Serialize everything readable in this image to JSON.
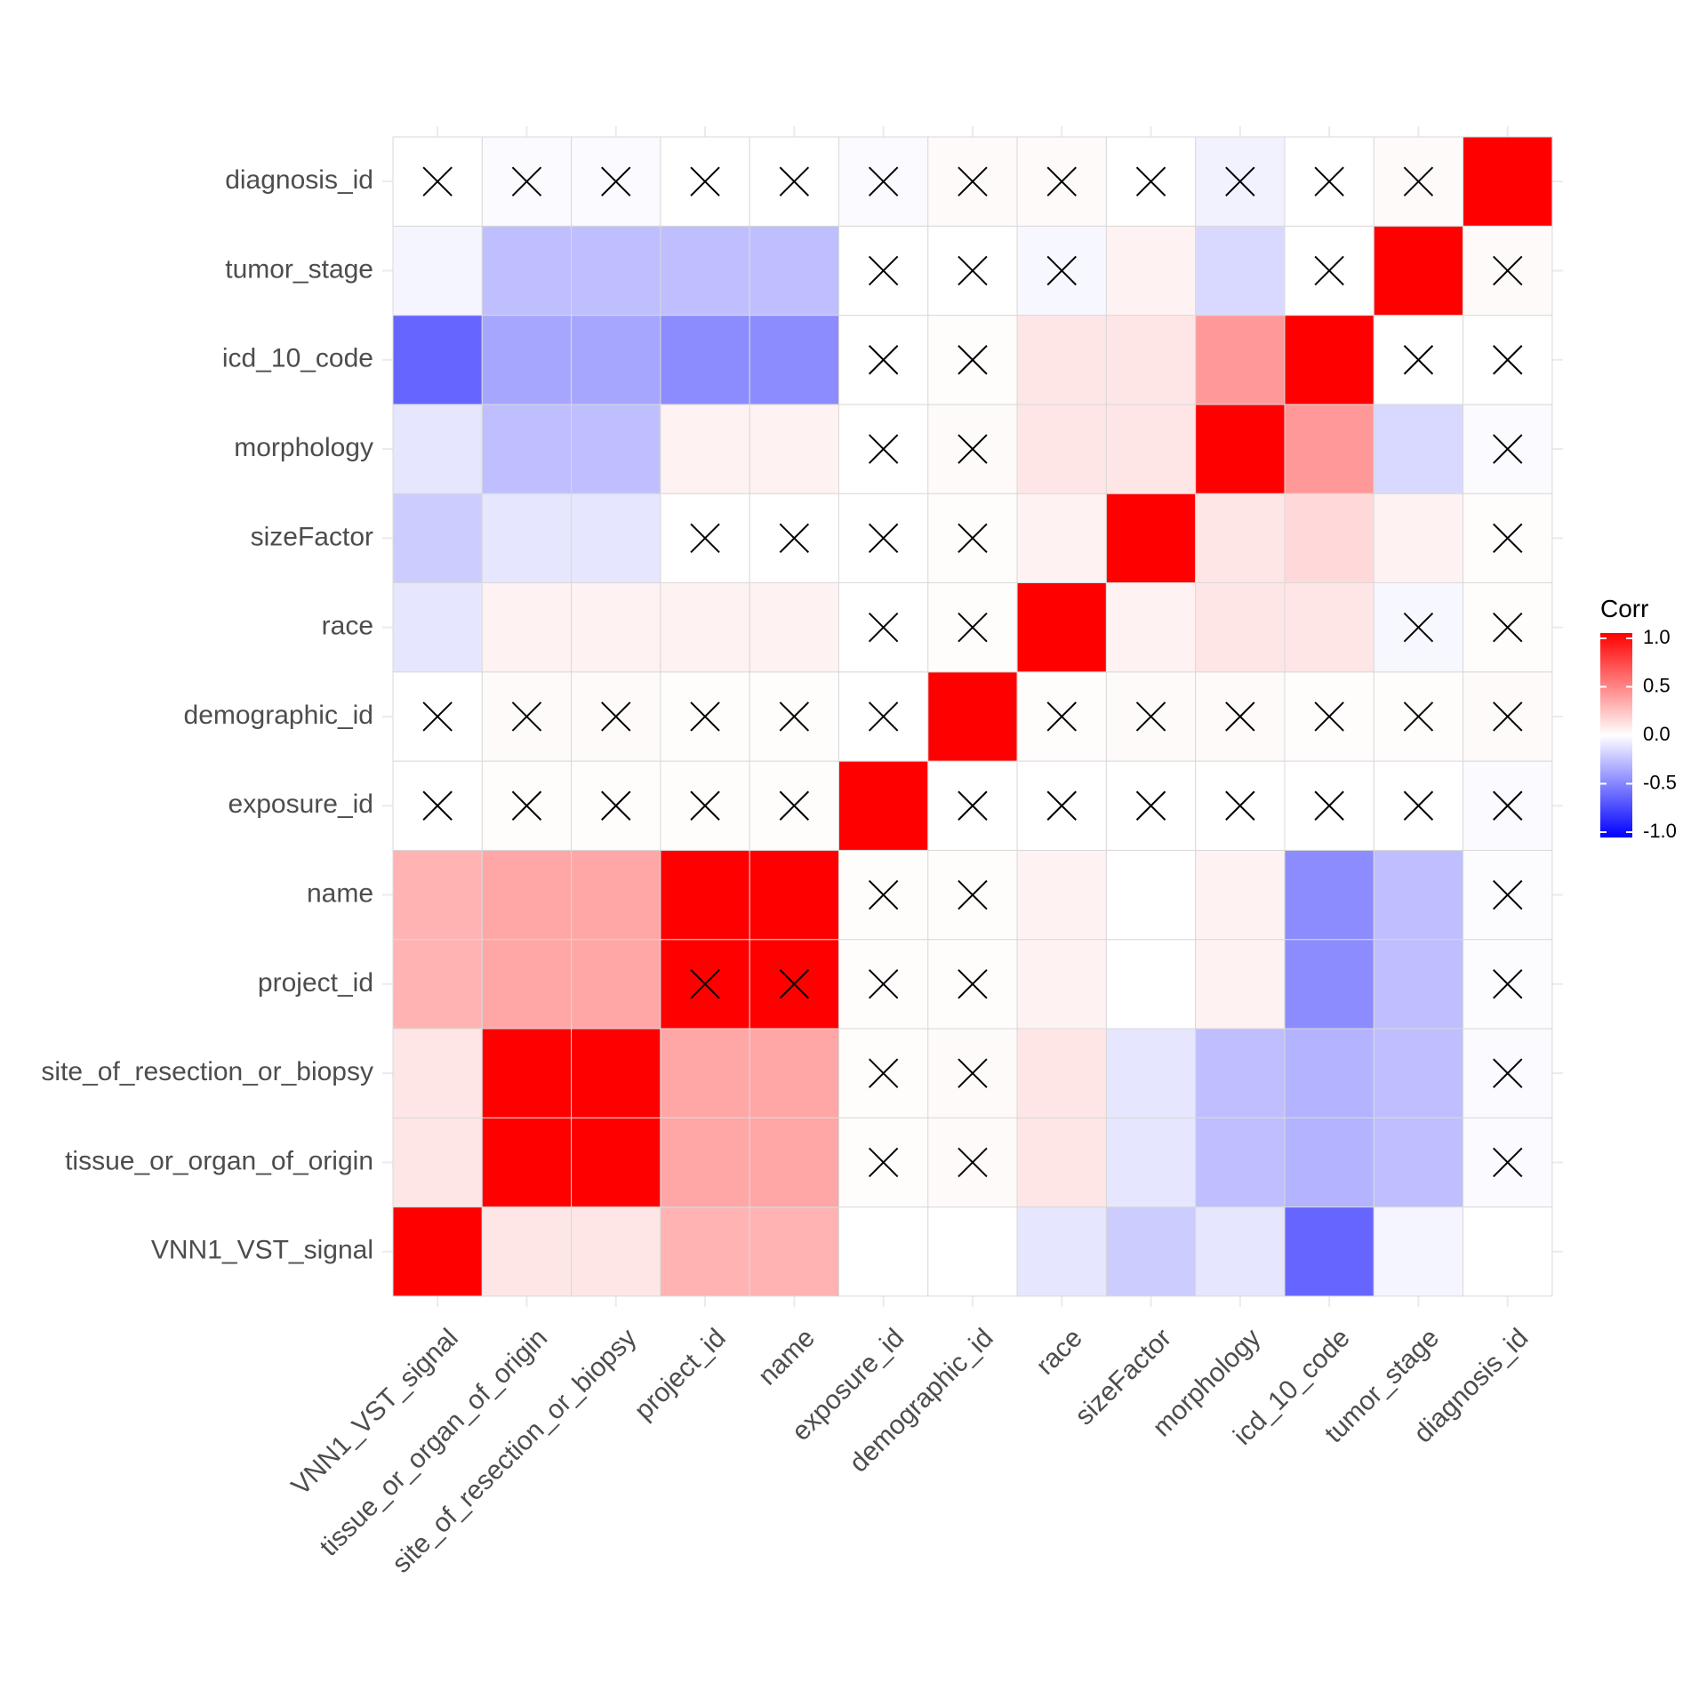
{
  "chart_data": {
    "type": "heatmap",
    "title": "",
    "xlabel": "",
    "ylabel": "",
    "variables": [
      "VNN1_VST_signal",
      "tissue_or_organ_of_origin",
      "site_of_resection_or_biopsy",
      "project_id",
      "name",
      "exposure_id",
      "demographic_id",
      "race",
      "sizeFactor",
      "morphology",
      "icd_10_code",
      "tumor_stage",
      "diagnosis_id"
    ],
    "matrix": [
      [
        1.0,
        0.1,
        0.1,
        0.3,
        0.3,
        0.0,
        0.0,
        -0.1,
        -0.2,
        -0.1,
        -0.6,
        -0.04,
        0.0
      ],
      [
        0.1,
        1.0,
        1.0,
        0.35,
        0.35,
        0.01,
        0.02,
        0.1,
        -0.1,
        -0.25,
        -0.3,
        -0.25,
        -0.02
      ],
      [
        0.1,
        1.0,
        1.0,
        0.35,
        0.35,
        0.01,
        0.02,
        0.1,
        -0.1,
        -0.25,
        -0.3,
        -0.25,
        -0.02
      ],
      [
        0.3,
        0.35,
        0.35,
        1.0,
        1.0,
        0.01,
        0.01,
        0.05,
        0.0,
        0.05,
        -0.45,
        -0.25,
        -0.01
      ],
      [
        0.3,
        0.35,
        0.35,
        1.0,
        1.0,
        0.01,
        0.01,
        0.05,
        0.0,
        0.05,
        -0.45,
        -0.25,
        -0.01
      ],
      [
        0.0,
        0.01,
        0.01,
        0.01,
        0.01,
        1.0,
        0.0,
        0.0,
        0.0,
        0.0,
        0.0,
        0.0,
        -0.02
      ],
      [
        0.0,
        0.02,
        0.02,
        0.01,
        0.01,
        0.0,
        1.0,
        0.01,
        0.02,
        0.02,
        0.01,
        0.01,
        0.02
      ],
      [
        -0.1,
        0.05,
        0.05,
        0.05,
        0.05,
        0.0,
        0.01,
        1.0,
        0.05,
        0.1,
        0.1,
        -0.03,
        0.01
      ],
      [
        -0.2,
        -0.1,
        -0.1,
        0.0,
        0.0,
        0.0,
        0.01,
        0.05,
        1.0,
        0.1,
        0.15,
        0.05,
        0.01
      ],
      [
        -0.1,
        -0.25,
        -0.25,
        0.05,
        0.05,
        0.0,
        0.02,
        0.1,
        0.1,
        1.0,
        0.4,
        -0.15,
        -0.02
      ],
      [
        -0.6,
        -0.35,
        -0.35,
        -0.45,
        -0.45,
        0.0,
        0.01,
        0.1,
        0.1,
        0.4,
        1.0,
        0.0,
        0.0
      ],
      [
        -0.04,
        -0.25,
        -0.25,
        -0.25,
        -0.25,
        0.0,
        0.0,
        -0.03,
        0.05,
        -0.15,
        0.0,
        1.0,
        0.02
      ],
      [
        0.0,
        -0.02,
        -0.02,
        0.0,
        0.0,
        -0.02,
        0.02,
        0.02,
        0.0,
        -0.05,
        0.0,
        0.02,
        1.0
      ]
    ],
    "insignificant": [
      [
        5,
        1
      ],
      [
        6,
        1
      ],
      [
        12,
        1
      ],
      [
        5,
        2
      ],
      [
        6,
        2
      ],
      [
        12,
        2
      ],
      [
        3,
        3
      ],
      [
        4,
        3
      ],
      [
        5,
        3
      ],
      [
        6,
        3
      ],
      [
        12,
        3
      ],
      [
        5,
        4
      ],
      [
        6,
        4
      ],
      [
        12,
        4
      ],
      [
        0,
        5
      ],
      [
        1,
        5
      ],
      [
        2,
        5
      ],
      [
        3,
        5
      ],
      [
        4,
        5
      ],
      [
        6,
        5
      ],
      [
        7,
        5
      ],
      [
        8,
        5
      ],
      [
        9,
        5
      ],
      [
        10,
        5
      ],
      [
        11,
        5
      ],
      [
        12,
        5
      ],
      [
        0,
        6
      ],
      [
        1,
        6
      ],
      [
        2,
        6
      ],
      [
        3,
        6
      ],
      [
        4,
        6
      ],
      [
        5,
        6
      ],
      [
        7,
        6
      ],
      [
        8,
        6
      ],
      [
        9,
        6
      ],
      [
        10,
        6
      ],
      [
        11,
        6
      ],
      [
        12,
        6
      ],
      [
        5,
        7
      ],
      [
        6,
        7
      ],
      [
        11,
        7
      ],
      [
        12,
        7
      ],
      [
        3,
        8
      ],
      [
        4,
        8
      ],
      [
        5,
        8
      ],
      [
        6,
        8
      ],
      [
        12,
        8
      ],
      [
        5,
        9
      ],
      [
        6,
        9
      ],
      [
        12,
        9
      ],
      [
        5,
        10
      ],
      [
        6,
        10
      ],
      [
        11,
        10
      ],
      [
        12,
        10
      ],
      [
        5,
        11
      ],
      [
        6,
        11
      ],
      [
        7,
        11
      ],
      [
        10,
        11
      ],
      [
        12,
        11
      ],
      [
        0,
        12
      ],
      [
        1,
        12
      ],
      [
        2,
        12
      ],
      [
        3,
        12
      ],
      [
        4,
        12
      ],
      [
        5,
        12
      ],
      [
        6,
        12
      ],
      [
        7,
        12
      ],
      [
        8,
        12
      ],
      [
        9,
        12
      ],
      [
        10,
        12
      ],
      [
        11,
        12
      ]
    ],
    "color_scale": {
      "low": "#0000ff",
      "mid": "#ffffff",
      "high": "#ff0000",
      "range": [
        -1,
        1
      ]
    },
    "legend": {
      "title": "Corr",
      "position": "right",
      "ticks": [
        {
          "value": 1,
          "label": "1.0"
        },
        {
          "value": 0.5,
          "label": "0.5"
        },
        {
          "value": 0,
          "label": "0.0"
        },
        {
          "value": -0.5,
          "label": "-0.5"
        },
        {
          "value": -1,
          "label": "-1.0"
        }
      ]
    },
    "grid": true
  }
}
